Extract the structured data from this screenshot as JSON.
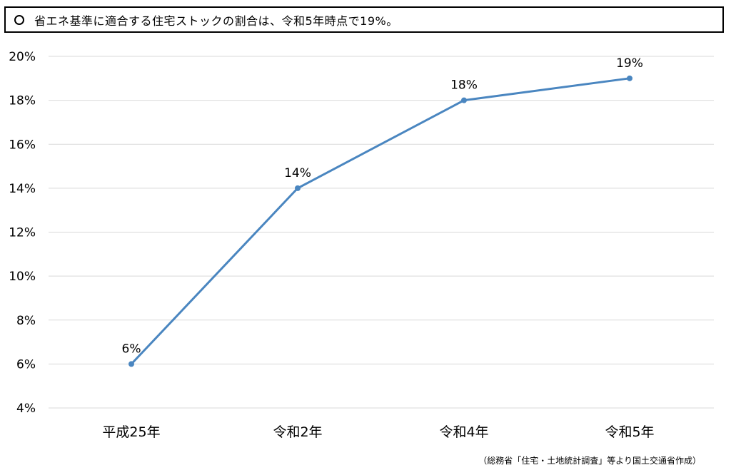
{
  "title": {
    "marker_icon": "circle-outline-icon",
    "text": "省エネ基準に適合する住宅ストックの割合は、令和5年時点で19%。"
  },
  "source_note": "（総務省「住宅・土地統計調査」等より国土交通省作成）",
  "chart_data": {
    "type": "line",
    "title": "",
    "xlabel": "",
    "ylabel": "",
    "categories": [
      "平成25年",
      "令和2年",
      "令和4年",
      "令和5年"
    ],
    "series": [
      {
        "values": [
          6,
          14,
          18,
          19
        ],
        "data_labels": [
          "6%",
          "14%",
          "18%",
          "19%"
        ],
        "color": "#4a86c0"
      }
    ],
    "ylim": [
      4,
      20
    ],
    "y_ticks": [
      "4%",
      "6%",
      "8%",
      "10%",
      "12%",
      "14%",
      "16%",
      "18%",
      "20%"
    ],
    "grid": true,
    "gridline_color": "#d9d9d9",
    "legend": "none"
  }
}
